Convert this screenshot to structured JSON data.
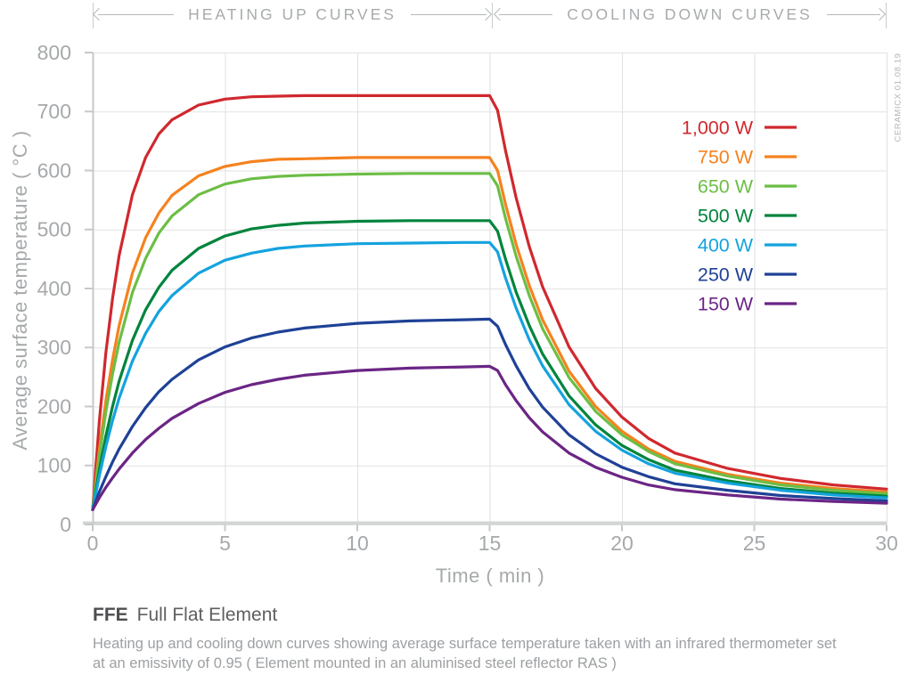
{
  "header": {
    "heating_label": "HEATING UP CURVES",
    "cooling_label": "COOLING DOWN CURVES"
  },
  "watermark": "CERAMICX 01.08.19",
  "caption": {
    "code": "FFE",
    "name": "Full Flat Element",
    "line1": "Heating up and cooling down curves showing average surface temperature taken with an infrared thermometer set",
    "line2": "at an emissivity of 0.95  ( Element mounted in an aluminised steel reflector RAS )"
  },
  "chart_data": {
    "type": "line",
    "xlabel": "Time ( min )",
    "ylabel": "Average surface temperature ( °C )",
    "xlim": [
      0,
      30
    ],
    "ylim": [
      0,
      800
    ],
    "xticks": [
      0,
      5,
      10,
      15,
      20,
      25,
      30
    ],
    "yticks": [
      0,
      100,
      200,
      300,
      400,
      500,
      600,
      700,
      800
    ],
    "grid": true,
    "legend_position": "inside-top-right",
    "phases": [
      {
        "label": "HEATING UP CURVES",
        "x_range": [
          0,
          15
        ]
      },
      {
        "label": "COOLING DOWN CURVES",
        "x_range": [
          15,
          30
        ]
      }
    ],
    "x": [
      0,
      0.25,
      0.5,
      0.75,
      1,
      1.5,
      2,
      2.5,
      3,
      4,
      5,
      6,
      7,
      8,
      10,
      12,
      14,
      15,
      15.3,
      15.6,
      16,
      16.5,
      17,
      18,
      19,
      20,
      21,
      22,
      24,
      26,
      28,
      30
    ],
    "series": [
      {
        "name": "1,000 W",
        "color": "#d0282e",
        "plateau_c": 727,
        "values": [
          25,
          174,
          291,
          383,
          456,
          559,
          622,
          662,
          686,
          711,
          721,
          725,
          726,
          727,
          727,
          727,
          727,
          727,
          702,
          634,
          554,
          471,
          403,
          301,
          231,
          182,
          146,
          121,
          95,
          78,
          67,
          60
        ]
      },
      {
        "name": "750 W",
        "color": "#f5821f",
        "plateau_c": 622,
        "values": [
          25,
          126,
          210,
          279,
          337,
          426,
          486,
          528,
          558,
          591,
          607,
          615,
          619,
          620,
          622,
          622,
          622,
          622,
          600,
          543,
          475,
          405,
          347,
          260,
          200,
          158,
          128,
          107,
          85,
          70,
          61,
          55
        ]
      },
      {
        "name": "650 W",
        "color": "#6cbe45",
        "plateau_c": 595,
        "values": [
          25,
          115,
          191,
          255,
          309,
          393,
          451,
          494,
          523,
          559,
          577,
          586,
          590,
          592,
          594,
          595,
          595,
          595,
          574,
          519,
          455,
          388,
          332,
          249,
          192,
          152,
          124,
          103,
          82,
          67,
          58,
          52
        ]
      },
      {
        "name": "500 W",
        "color": "#00843d",
        "plateau_c": 515,
        "values": [
          25,
          92,
          150,
          200,
          243,
          312,
          364,
          402,
          431,
          468,
          489,
          501,
          507,
          511,
          514,
          515,
          515,
          515,
          497,
          450,
          394,
          337,
          289,
          218,
          169,
          134,
          110,
          92,
          74,
          61,
          53,
          48
        ]
      },
      {
        "name": "400 W",
        "color": "#14a3de",
        "plateau_c": 478,
        "values": [
          25,
          82,
          132,
          176,
          214,
          277,
          324,
          361,
          388,
          426,
          448,
          460,
          468,
          472,
          476,
          477,
          478,
          478,
          462,
          418,
          367,
          313,
          269,
          203,
          158,
          126,
          103,
          87,
          70,
          58,
          50,
          45
        ]
      },
      {
        "name": "250 W",
        "color": "#1f4196",
        "plateau_c": 348,
        "values": [
          25,
          55,
          81,
          106,
          128,
          166,
          198,
          225,
          246,
          279,
          301,
          316,
          326,
          333,
          341,
          345,
          347,
          348,
          336,
          305,
          269,
          230,
          199,
          152,
          120,
          97,
          81,
          69,
          58,
          49,
          44,
          40
        ]
      },
      {
        "name": "150 W",
        "color": "#6b2585",
        "plateau_c": 270,
        "values": [
          25,
          45,
          63,
          79,
          94,
          121,
          144,
          163,
          180,
          205,
          224,
          237,
          246,
          253,
          261,
          265,
          267,
          268,
          261,
          237,
          210,
          181,
          157,
          121,
          97,
          80,
          67,
          59,
          50,
          43,
          39,
          36
        ]
      }
    ]
  }
}
